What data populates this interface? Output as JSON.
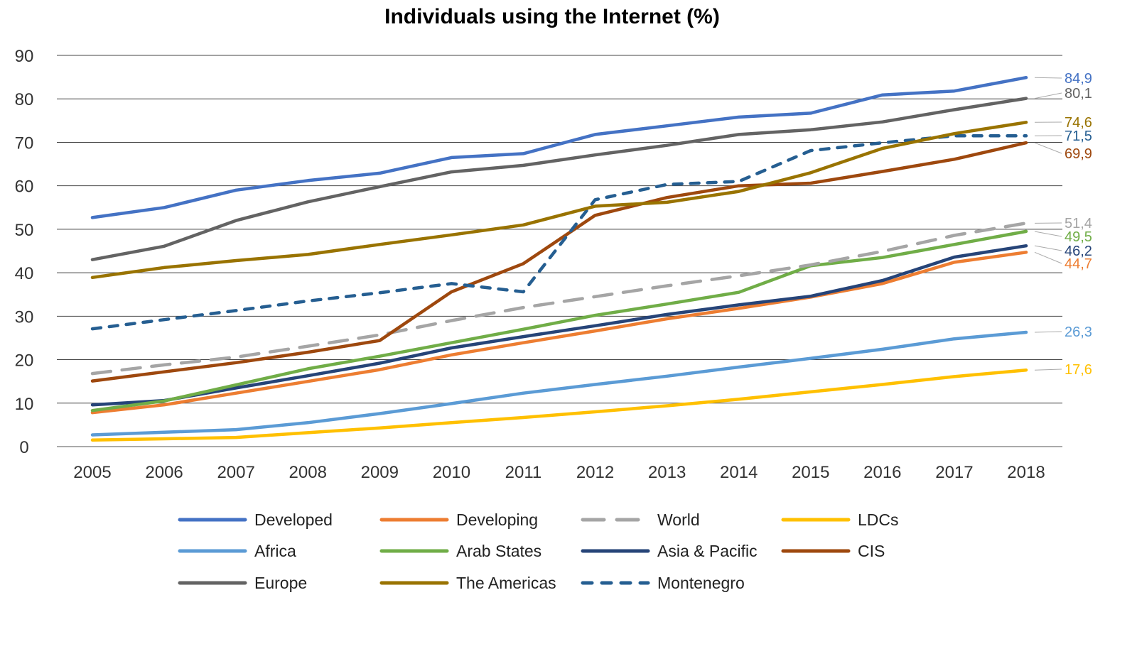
{
  "chart_data": {
    "type": "line",
    "title": "Individuals using the Internet (%)",
    "xlabel": "",
    "ylabel": "",
    "ylim": [
      0,
      90
    ],
    "yticks": [
      0,
      10,
      20,
      30,
      40,
      50,
      60,
      70,
      80,
      90
    ],
    "grid": true,
    "legend_position": "bottom",
    "x": [
      "2005",
      "2006",
      "2007",
      "2008",
      "2009",
      "2010",
      "2011",
      "2012",
      "2013",
      "2014",
      "2015",
      "2016",
      "2017",
      "2018"
    ],
    "series": [
      {
        "name": "Developed",
        "color": "#4472c4",
        "dash": false,
        "end_label": "84,9",
        "values": [
          52.7,
          55.0,
          59.0,
          61.2,
          62.9,
          66.5,
          67.4,
          71.8,
          73.8,
          75.8,
          76.7,
          80.9,
          81.8,
          84.9
        ]
      },
      {
        "name": "Developing",
        "color": "#ed7d31",
        "dash": false,
        "end_label": "44,7",
        "values": [
          7.8,
          9.6,
          12.3,
          15.0,
          17.7,
          21.1,
          23.9,
          26.6,
          29.4,
          31.8,
          34.4,
          37.5,
          42.4,
          44.7
        ]
      },
      {
        "name": "World",
        "color": "#a5a5a5",
        "dash": "long",
        "end_label": "51,4",
        "values": [
          16.8,
          18.8,
          20.6,
          23.1,
          25.7,
          29.0,
          32.0,
          34.5,
          37.0,
          39.3,
          41.8,
          44.9,
          48.6,
          51.4
        ]
      },
      {
        "name": "LDCs",
        "color": "#ffc000",
        "dash": false,
        "end_label": "17,6",
        "values": [
          1.5,
          1.8,
          2.1,
          3.2,
          4.3,
          5.5,
          6.7,
          8.0,
          9.4,
          10.9,
          12.6,
          14.3,
          16.1,
          17.6
        ]
      },
      {
        "name": "Africa",
        "color": "#5b9bd5",
        "dash": false,
        "end_label": "26,3",
        "values": [
          2.7,
          3.3,
          3.9,
          5.5,
          7.6,
          9.9,
          12.3,
          14.3,
          16.2,
          18.3,
          20.3,
          22.4,
          24.8,
          26.3
        ]
      },
      {
        "name": "Arab States",
        "color": "#70ad47",
        "dash": false,
        "end_label": "49,5",
        "values": [
          8.3,
          10.5,
          14.2,
          17.9,
          20.8,
          23.9,
          27.0,
          30.2,
          32.8,
          35.5,
          41.6,
          43.5,
          46.5,
          49.5
        ]
      },
      {
        "name": "Asia & Pacific",
        "color": "#264478",
        "dash": false,
        "end_label": "46,2",
        "values": [
          9.6,
          10.6,
          13.5,
          16.3,
          19.2,
          22.7,
          25.3,
          27.8,
          30.4,
          32.6,
          34.6,
          38.2,
          43.6,
          46.2
        ]
      },
      {
        "name": "CIS",
        "color": "#9e480e",
        "dash": false,
        "end_label": "69,9",
        "values": [
          15.1,
          17.2,
          19.3,
          21.7,
          24.4,
          35.6,
          42.1,
          53.2,
          57.3,
          60.0,
          60.6,
          63.3,
          66.1,
          69.9
        ]
      },
      {
        "name": "Europe",
        "color": "#636363",
        "dash": false,
        "end_label": "80,1",
        "values": [
          43.0,
          46.1,
          52.0,
          56.3,
          59.8,
          63.2,
          64.7,
          67.1,
          69.3,
          71.8,
          72.9,
          74.7,
          77.5,
          80.1
        ]
      },
      {
        "name": "The Americas",
        "color": "#997300",
        "dash": false,
        "end_label": "74,6",
        "values": [
          38.9,
          41.2,
          42.8,
          44.2,
          46.5,
          48.7,
          51.0,
          55.3,
          56.2,
          58.7,
          63.0,
          68.6,
          72.0,
          74.6
        ]
      },
      {
        "name": "Montenegro",
        "color": "#255e91",
        "dash": "short",
        "end_label": "71,5",
        "values": [
          27.1,
          29.2,
          31.3,
          33.5,
          35.4,
          37.5,
          35.6,
          56.8,
          60.3,
          61.0,
          68.1,
          69.9,
          71.5,
          71.5
        ]
      }
    ]
  }
}
